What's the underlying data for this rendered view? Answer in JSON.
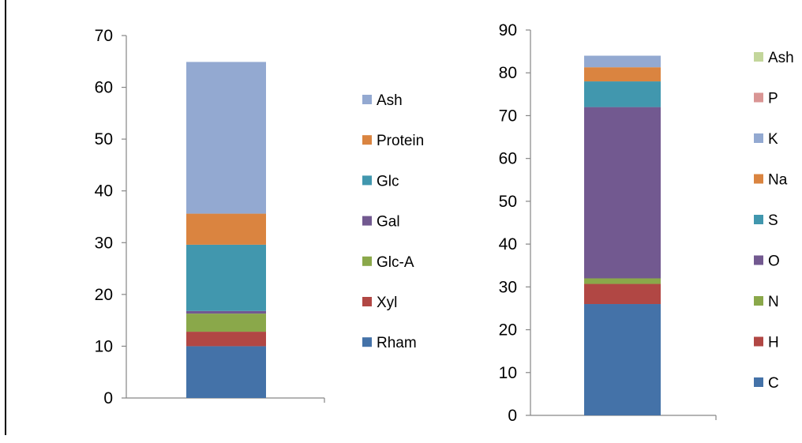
{
  "chart_data": [
    {
      "type": "bar",
      "stacked": true,
      "categories": [
        ""
      ],
      "ylim": [
        0,
        70
      ],
      "yticks": [
        "0",
        "10",
        "20",
        "30",
        "40",
        "50",
        "60",
        "70"
      ],
      "grid": false,
      "legend_position": "right",
      "series": [
        {
          "name": "Rham",
          "values": [
            10.0
          ],
          "color": "#4472A8"
        },
        {
          "name": "Xyl",
          "values": [
            2.8
          ],
          "color": "#B14744"
        },
        {
          "name": "Glc-A",
          "values": [
            3.5
          ],
          "color": "#8AA84A"
        },
        {
          "name": "Gal",
          "values": [
            0.5
          ],
          "color": "#725990"
        },
        {
          "name": "Glc",
          "values": [
            12.8
          ],
          "color": "#4197AE"
        },
        {
          "name": "Protein",
          "values": [
            6.0
          ],
          "color": "#DA8440"
        },
        {
          "name": "Ash",
          "values": [
            29.3
          ],
          "color": "#93A9D1"
        }
      ]
    },
    {
      "type": "bar",
      "stacked": true,
      "categories": [
        ""
      ],
      "ylim": [
        0,
        90
      ],
      "yticks": [
        "0",
        "10",
        "20",
        "30",
        "40",
        "50",
        "60",
        "70",
        "80",
        "90"
      ],
      "grid": false,
      "legend_position": "right",
      "series": [
        {
          "name": "C",
          "values": [
            26.0
          ],
          "color": "#4472A8"
        },
        {
          "name": "H",
          "values": [
            4.7
          ],
          "color": "#B14744"
        },
        {
          "name": "N",
          "values": [
            1.3
          ],
          "color": "#8AA84A"
        },
        {
          "name": "O",
          "values": [
            40.0
          ],
          "color": "#725990"
        },
        {
          "name": "S",
          "values": [
            6.0
          ],
          "color": "#4197AE"
        },
        {
          "name": "Na",
          "values": [
            3.3
          ],
          "color": "#DA8440"
        },
        {
          "name": "K",
          "values": [
            2.7
          ],
          "color": "#93A9D1"
        },
        {
          "name": "P",
          "values": [
            0.0
          ],
          "color": "#D99594"
        },
        {
          "name": "Ash",
          "values": [
            0.0
          ],
          "color": "#C3D69B"
        }
      ]
    }
  ]
}
